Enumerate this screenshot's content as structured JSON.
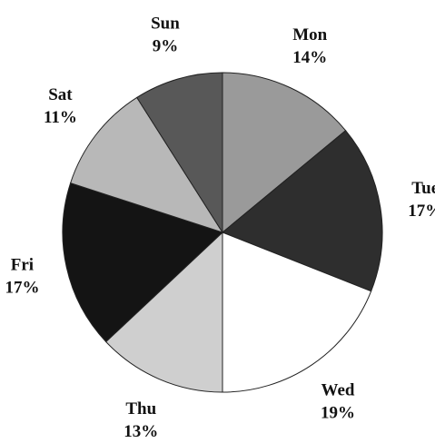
{
  "chart_data": {
    "type": "pie",
    "categories": [
      "Mon",
      "Tue",
      "Wed",
      "Thu",
      "Fri",
      "Sat",
      "Sun"
    ],
    "values": [
      14,
      17,
      19,
      13,
      17,
      11,
      9
    ],
    "value_labels": [
      "14%",
      "17%",
      "19%",
      "13%",
      "17%",
      "11%",
      "9%"
    ],
    "colors": [
      "#9a9a9a",
      "#2e2e2e",
      "#ffffff",
      "#cfcfcf",
      "#141414",
      "#b8b8b8",
      "#585858"
    ]
  }
}
